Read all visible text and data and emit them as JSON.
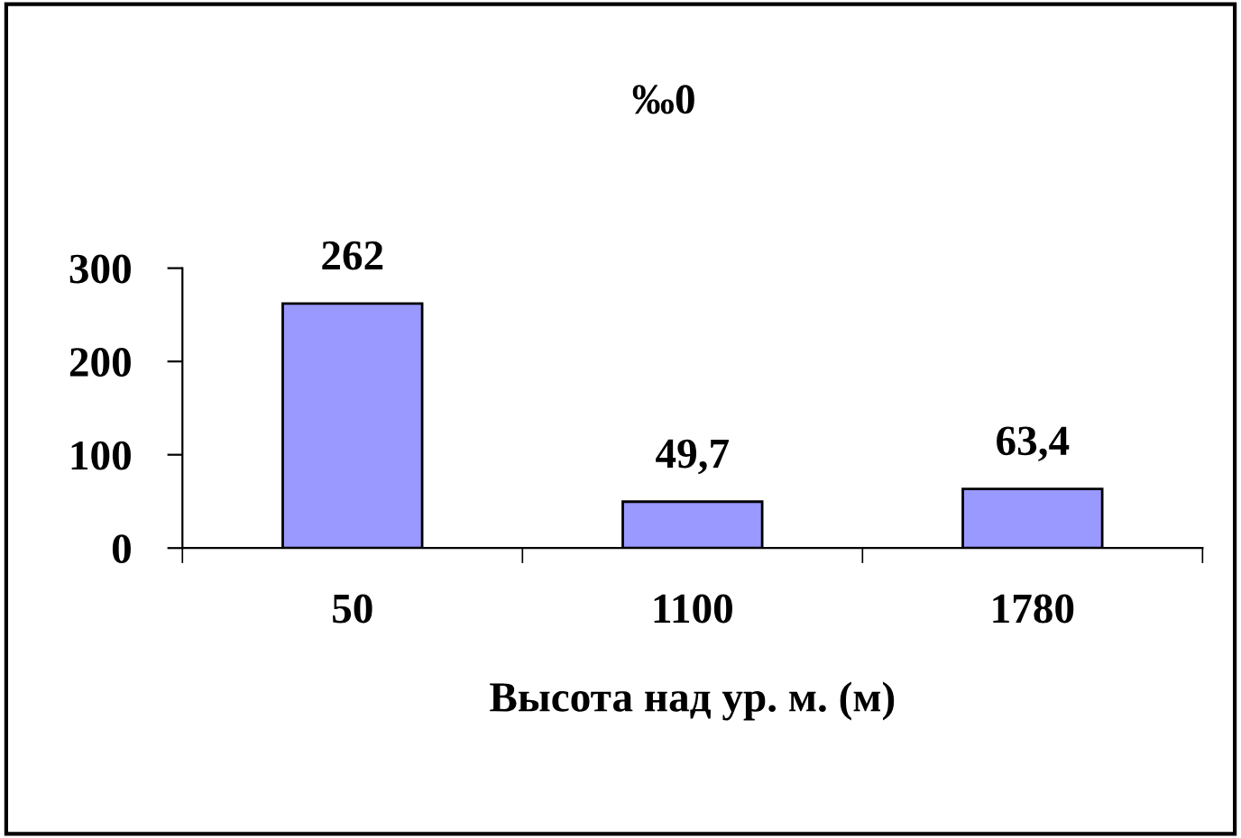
{
  "chart_data": {
    "type": "bar",
    "title": "‰0",
    "xlabel": "Высота над ур. м. (м)",
    "categories": [
      "50",
      "1100",
      "1780"
    ],
    "values": [
      262,
      49.7,
      63.4
    ],
    "color": "#9999ff",
    "value_labels": [
      "262",
      "49,7",
      "63,4"
    ],
    "ylim": [
      0,
      300
    ],
    "yticks": [
      0,
      100,
      200,
      300
    ],
    "grid": false,
    "legend": false
  }
}
